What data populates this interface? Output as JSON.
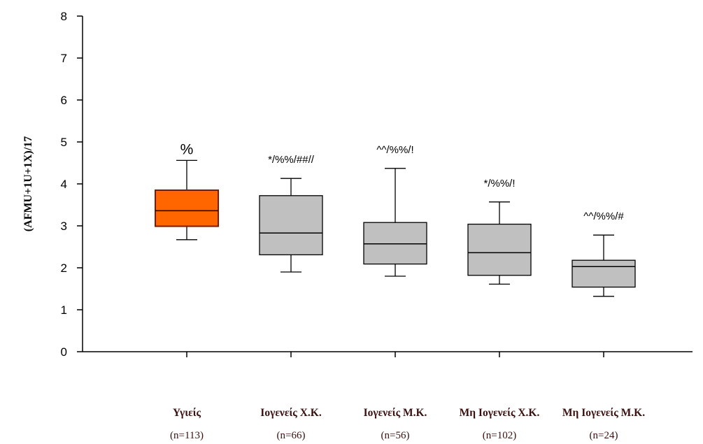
{
  "chart_data": {
    "type": "box",
    "ylabel": "(AFMU+1U+1X)/17",
    "xlabel": "",
    "ylim": [
      0,
      8
    ],
    "yticks": [
      0,
      1,
      2,
      3,
      4,
      5,
      6,
      7,
      8
    ],
    "grid": false,
    "colors": {
      "highlight": "#ff6600",
      "highlight_border": "#7a1a00",
      "default": "#c0c0c0",
      "default_border": "#000000"
    },
    "categories": [
      {
        "name": "Υγιείς",
        "n": "(n=113)",
        "whisker_low": 2.67,
        "q1": 2.99,
        "median": 3.36,
        "q3": 3.85,
        "whisker_high": 4.56,
        "annotation": "%",
        "highlight": true
      },
      {
        "name": "Ιογενείς Χ.Κ.",
        "n": "(n=66)",
        "whisker_low": 1.9,
        "q1": 2.31,
        "median": 2.83,
        "q3": 3.72,
        "whisker_high": 4.13,
        "annotation": "*/%%/##//",
        "highlight": false
      },
      {
        "name": "Ιογενείς Μ.Κ.",
        "n": "(n=56)",
        "whisker_low": 1.8,
        "q1": 2.09,
        "median": 2.57,
        "q3": 3.08,
        "whisker_high": 4.37,
        "annotation": "^^/%%/!",
        "highlight": false
      },
      {
        "name": "Μη Ιογενείς Χ.Κ.",
        "n": "(n=102)",
        "whisker_low": 1.61,
        "q1": 1.82,
        "median": 2.36,
        "q3": 3.04,
        "whisker_high": 3.57,
        "annotation": "*/%%/!",
        "highlight": false
      },
      {
        "name": "Μη Ιογενείς Μ.Κ.",
        "n": "(n=24)",
        "whisker_low": 1.32,
        "q1": 1.54,
        "median": 2.03,
        "q3": 2.18,
        "whisker_high": 2.78,
        "annotation": "^^/%%/#",
        "highlight": false
      }
    ]
  }
}
